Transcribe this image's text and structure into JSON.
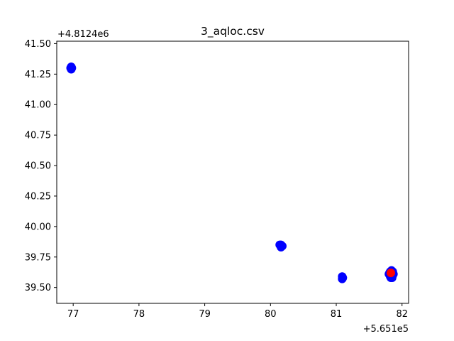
{
  "chart_data": {
    "type": "scatter",
    "title": "3_aqloc.csv",
    "xlabel": "",
    "ylabel": "",
    "x_offset_label": "+5.651e5",
    "y_offset_label": "+4.8124e6",
    "xlim": [
      76.75,
      82.1
    ],
    "ylim": [
      39.37,
      41.52
    ],
    "x_ticks": [
      77,
      78,
      79,
      80,
      81,
      82
    ],
    "x_tick_labels": [
      "77",
      "78",
      "79",
      "80",
      "81",
      "82"
    ],
    "y_ticks": [
      39.5,
      39.75,
      40.0,
      40.25,
      40.5,
      40.75,
      41.0,
      41.25,
      41.5
    ],
    "y_tick_labels": [
      "39.50",
      "39.75",
      "40.00",
      "40.25",
      "40.50",
      "40.75",
      "41.00",
      "41.25",
      "41.50"
    ],
    "grid": false,
    "series": [
      {
        "color": "#0000ff",
        "points": [
          [
            76.97,
            41.31
          ],
          [
            76.98,
            41.3
          ],
          [
            76.96,
            41.3
          ],
          [
            76.97,
            41.29
          ],
          [
            80.14,
            39.85
          ],
          [
            80.16,
            39.85
          ],
          [
            80.17,
            39.84
          ],
          [
            80.18,
            39.84
          ],
          [
            80.16,
            39.83
          ],
          [
            81.09,
            39.59
          ],
          [
            81.1,
            39.58
          ],
          [
            81.09,
            39.57
          ],
          [
            81.82,
            39.63
          ],
          [
            81.84,
            39.64
          ],
          [
            81.86,
            39.63
          ],
          [
            81.81,
            39.62
          ],
          [
            81.85,
            39.62
          ],
          [
            81.87,
            39.61
          ],
          [
            81.8,
            39.61
          ],
          [
            81.83,
            39.6
          ],
          [
            81.86,
            39.6
          ],
          [
            81.82,
            39.59
          ],
          [
            81.84,
            39.59
          ],
          [
            81.85,
            39.58
          ],
          [
            81.83,
            39.58
          ]
        ]
      },
      {
        "color": "#ff0000",
        "points": [
          [
            81.83,
            39.62
          ]
        ]
      }
    ]
  }
}
